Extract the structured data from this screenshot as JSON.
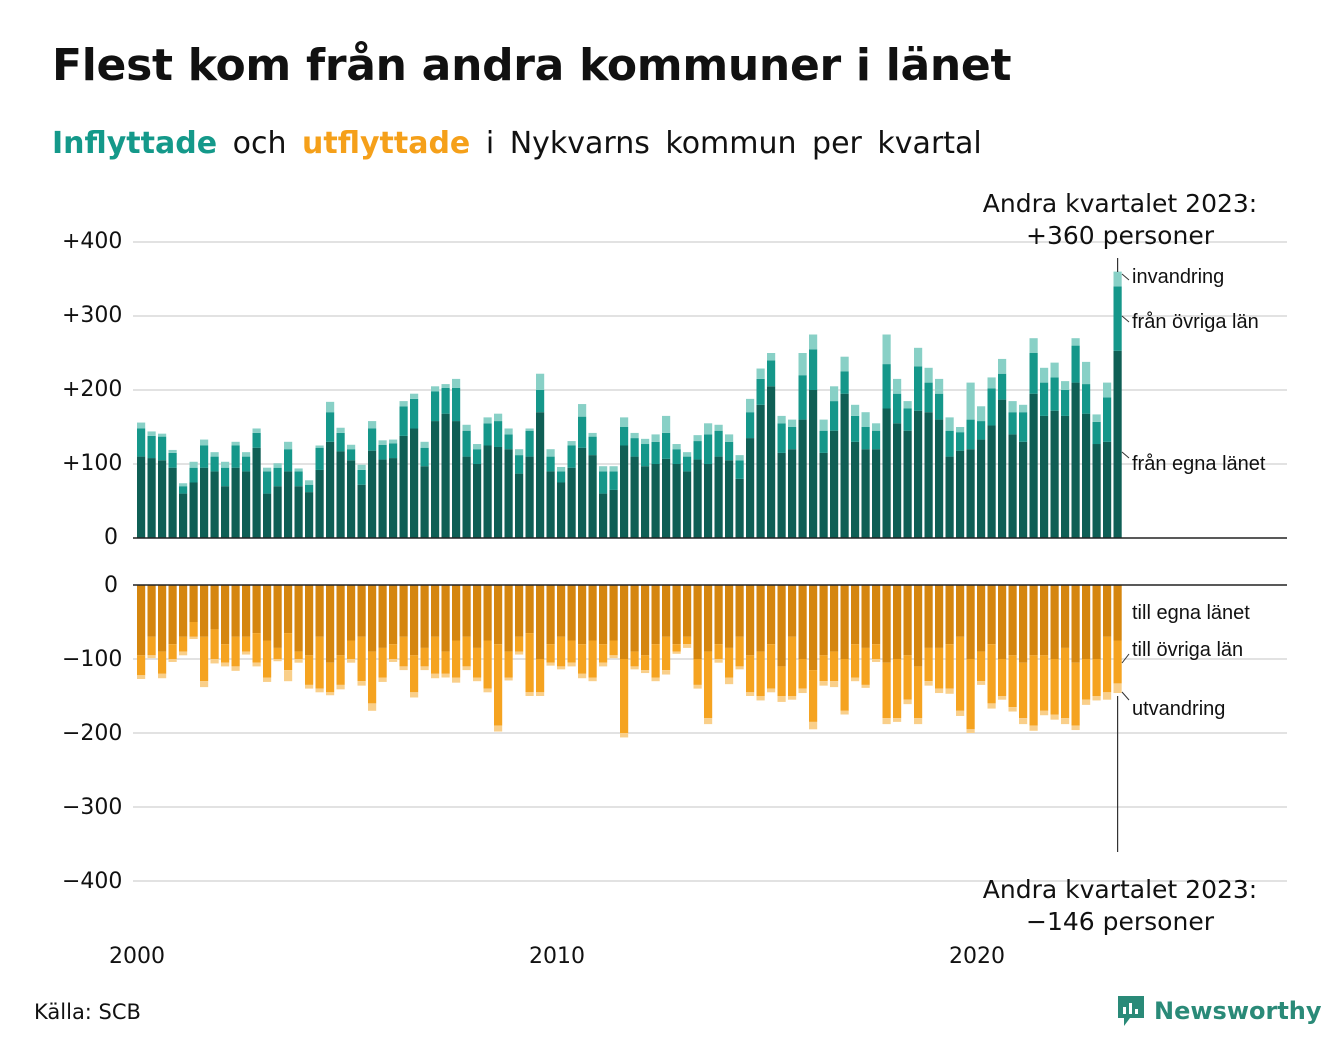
{
  "title": "Flest kom från andra kommuner i länet",
  "subtitle": {
    "in": "Inflyttade",
    "and": "och",
    "out": "utflyttade",
    "rest": "i Nykvarns kommun per kvartal"
  },
  "source": "Källa: SCB",
  "logo": "Newsworthy",
  "annotations": {
    "top_line1": "Andra kvartalet 2023:",
    "top_line2": "+360 personer",
    "bottom_line1": "Andra kvartalet 2023:",
    "bottom_line2": "−146 personer"
  },
  "colors": {
    "in_local": "#0f5f55",
    "in_other": "#15978a",
    "in_immig": "#88d0c6",
    "out_local": "#d5860f",
    "out_other": "#f5a320",
    "out_emig": "#f9cf8a"
  },
  "chart_data": {
    "type": "bar",
    "x_start": "2000 Q1",
    "x_end": "2023 Q2",
    "xticks": [
      "2000",
      "2010",
      "2020"
    ],
    "yticks_top": [
      "+400",
      "+300",
      "+200",
      "+100",
      "0"
    ],
    "yticks_bottom": [
      "0",
      "−100",
      "−200",
      "−300",
      "−400"
    ],
    "ylim_top": [
      0,
      400
    ],
    "ylim_bottom": [
      -400,
      0
    ],
    "grid": true,
    "series_in": [
      {
        "name": "från egna länet",
        "values": [
          110,
          108,
          105,
          95,
          60,
          75,
          95,
          90,
          70,
          95,
          90,
          122,
          60,
          70,
          90,
          70,
          62,
          92,
          130,
          117,
          105,
          72,
          118,
          106,
          108,
          138,
          148,
          97,
          158,
          168,
          158,
          110,
          100,
          125,
          123,
          120,
          87,
          110,
          170,
          90,
          75,
          95,
          122,
          112,
          60,
          65,
          125,
          110,
          97,
          100,
          107,
          100,
          90,
          106,
          100,
          110,
          105,
          80,
          135,
          180,
          205,
          115,
          120,
          160,
          200,
          115,
          145,
          195,
          130,
          120,
          120,
          175,
          155,
          145,
          172,
          170,
          160,
          110,
          118,
          120,
          133,
          152,
          187,
          140,
          130,
          195,
          165,
          172,
          165,
          210,
          168,
          127,
          130,
          253
        ]
      },
      {
        "name": "från övriga län",
        "values": [
          38,
          30,
          32,
          20,
          10,
          20,
          30,
          20,
          25,
          30,
          20,
          20,
          30,
          25,
          30,
          20,
          10,
          30,
          40,
          25,
          15,
          20,
          30,
          20,
          20,
          40,
          40,
          25,
          40,
          35,
          45,
          35,
          20,
          30,
          35,
          20,
          25,
          35,
          30,
          20,
          15,
          30,
          42,
          25,
          30,
          25,
          25,
          25,
          30,
          30,
          35,
          20,
          20,
          25,
          40,
          35,
          25,
          25,
          35,
          35,
          35,
          40,
          30,
          60,
          55,
          30,
          40,
          30,
          35,
          30,
          25,
          60,
          40,
          30,
          60,
          40,
          35,
          35,
          25,
          40,
          25,
          50,
          35,
          30,
          40,
          55,
          45,
          45,
          35,
          50,
          40,
          30,
          60,
          87
        ]
      },
      {
        "name": "invandring",
        "values": [
          8,
          6,
          4,
          4,
          4,
          8,
          8,
          6,
          8,
          5,
          6,
          6,
          5,
          6,
          10,
          4,
          6,
          3,
          14,
          7,
          6,
          7,
          10,
          6,
          5,
          7,
          7,
          8,
          7,
          5,
          12,
          8,
          7,
          8,
          10,
          8,
          8,
          3,
          22,
          10,
          6,
          6,
          17,
          5,
          7,
          7,
          13,
          7,
          7,
          10,
          23,
          7,
          6,
          8,
          15,
          8,
          10,
          7,
          18,
          14,
          10,
          10,
          10,
          30,
          20,
          15,
          20,
          20,
          15,
          20,
          10,
          40,
          20,
          10,
          25,
          20,
          20,
          18,
          7,
          50,
          20,
          15,
          20,
          15,
          10,
          20,
          20,
          20,
          12,
          10,
          30,
          10,
          20,
          20
        ]
      }
    ],
    "series_out": [
      {
        "name": "till egna länet",
        "values": [
          -95,
          -70,
          -90,
          -80,
          -70,
          -50,
          -70,
          -60,
          -80,
          -70,
          -70,
          -65,
          -75,
          -85,
          -65,
          -90,
          -95,
          -70,
          -105,
          -95,
          -75,
          -70,
          -90,
          -85,
          -80,
          -70,
          -95,
          -85,
          -70,
          -90,
          -75,
          -70,
          -85,
          -75,
          -80,
          -90,
          -70,
          -65,
          -100,
          -80,
          -70,
          -75,
          -80,
          -75,
          -80,
          -75,
          -100,
          -90,
          -95,
          -80,
          -70,
          -80,
          -70,
          -100,
          -90,
          -80,
          -85,
          -70,
          -95,
          -90,
          -80,
          -110,
          -70,
          -100,
          -115,
          -95,
          -90,
          -100,
          -80,
          -85,
          -80,
          -105,
          -100,
          -95,
          -110,
          -85,
          -85,
          -80,
          -70,
          -100,
          -90,
          -80,
          -100,
          -95,
          -105,
          -95,
          -95,
          -100,
          -85,
          -105,
          -100,
          -100,
          -70,
          -75
        ]
      },
      {
        "name": "till övriga län",
        "values": [
          -27,
          -25,
          -30,
          -20,
          -20,
          -20,
          -60,
          -40,
          -25,
          -40,
          -20,
          -40,
          -50,
          -15,
          -50,
          -10,
          -40,
          -70,
          -40,
          -40,
          -25,
          -60,
          -70,
          -40,
          -20,
          -40,
          -50,
          -25,
          -50,
          -30,
          -50,
          -40,
          -40,
          -65,
          -110,
          -35,
          -20,
          -80,
          -45,
          -25,
          -40,
          -30,
          -40,
          -50,
          -25,
          -20,
          -100,
          -20,
          -20,
          -45,
          -45,
          -10,
          -10,
          -35,
          -90,
          -20,
          -40,
          -40,
          -50,
          -60,
          -60,
          -40,
          -80,
          -40,
          -70,
          -35,
          -40,
          -70,
          -45,
          -50,
          -20,
          -75,
          -80,
          -60,
          -70,
          -45,
          -55,
          -60,
          -100,
          -95,
          -40,
          -80,
          -50,
          -70,
          -75,
          -95,
          -75,
          -75,
          -95,
          -85,
          -55,
          -50,
          -75,
          -58
        ]
      },
      {
        "name": "utvandring",
        "values": [
          -5,
          -4,
          -6,
          -4,
          -5,
          -3,
          -8,
          -6,
          -5,
          -6,
          -4,
          -5,
          -6,
          -3,
          -15,
          -5,
          -5,
          -5,
          -4,
          -6,
          -5,
          -6,
          -10,
          -6,
          -4,
          -5,
          -7,
          -5,
          -6,
          -5,
          -7,
          -5,
          -5,
          -5,
          -8,
          -4,
          -4,
          -5,
          -5,
          -4,
          -4,
          -5,
          -6,
          -5,
          -5,
          -4,
          -6,
          -4,
          -4,
          -5,
          -6,
          -3,
          -5,
          -5,
          -8,
          -5,
          -9,
          -4,
          -5,
          -6,
          -5,
          -8,
          -5,
          -6,
          -10,
          -6,
          -8,
          -5,
          -5,
          -4,
          -4,
          -8,
          -5,
          -6,
          -8,
          -6,
          -6,
          -7,
          -7,
          -5,
          -5,
          -7,
          -5,
          -6,
          -8,
          -7,
          -6,
          -7,
          -8,
          -6,
          -7,
          -6,
          -10,
          -13
        ]
      }
    ],
    "end_labels_in": [
      "invandring",
      "från övriga län",
      "från egna länet"
    ],
    "end_labels_out": [
      "till egna länet",
      "till övriga län",
      "utvandring"
    ]
  }
}
